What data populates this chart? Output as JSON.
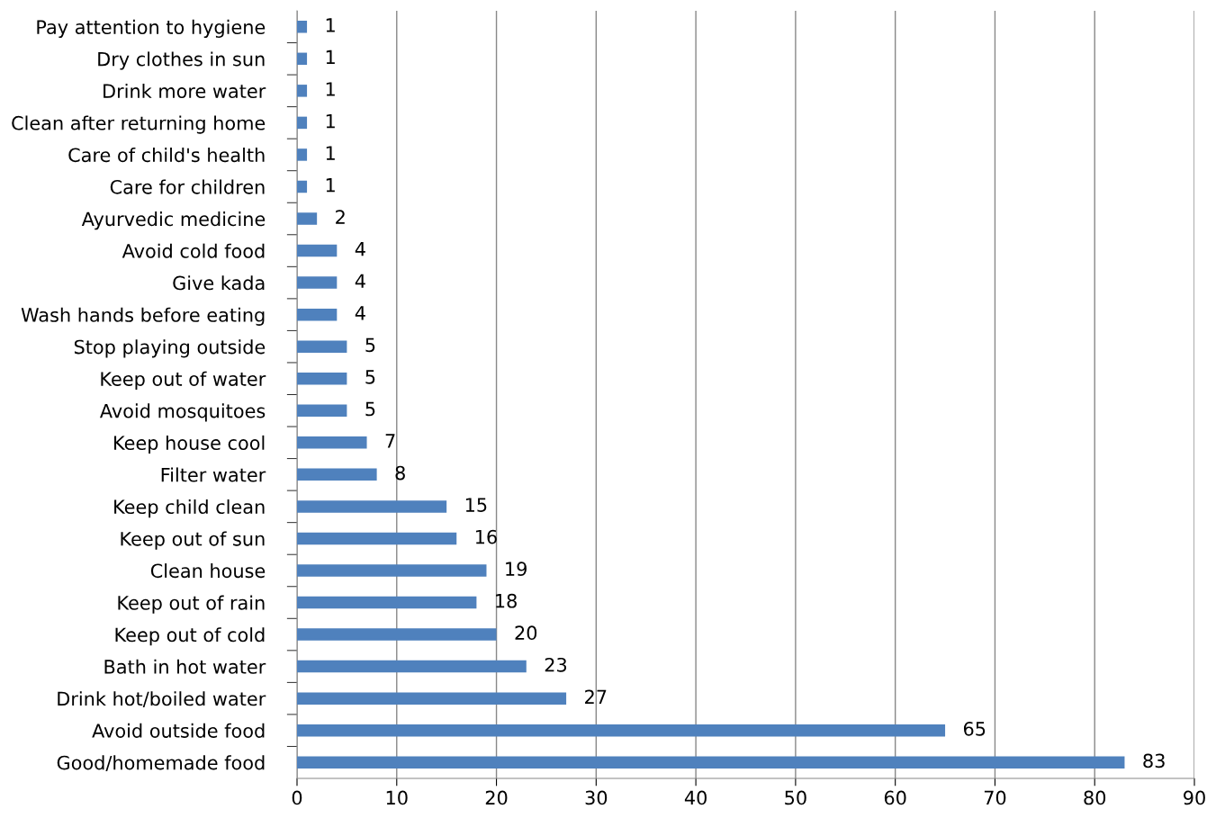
{
  "chart_data": {
    "type": "bar",
    "orientation": "horizontal",
    "categories": [
      "Pay attention to hygiene",
      "Dry clothes in sun",
      "Drink more water",
      "Clean after returning home",
      "Care of child's health",
      "Care for children",
      "Ayurvedic medicine",
      "Avoid cold food",
      "Give kada",
      "Wash hands before eating",
      "Stop playing outside",
      "Keep out of water",
      "Avoid mosquitoes",
      "Keep house cool",
      "Filter water",
      "Keep child clean",
      "Keep out of sun",
      "Clean house",
      "Keep out of rain",
      "Keep out of cold",
      "Bath in hot water",
      "Drink hot/boiled water",
      "Avoid outside food",
      "Good/homemade food"
    ],
    "values": [
      1,
      1,
      1,
      1,
      1,
      1,
      2,
      4,
      4,
      4,
      5,
      5,
      5,
      7,
      8,
      15,
      16,
      19,
      18,
      20,
      23,
      27,
      65,
      83
    ],
    "color": "#4f81bd",
    "xlim": [
      0,
      90
    ],
    "xticks": [
      0,
      10,
      20,
      30,
      40,
      50,
      60,
      70,
      80,
      90
    ],
    "grid": "x",
    "data_labels": true
  }
}
